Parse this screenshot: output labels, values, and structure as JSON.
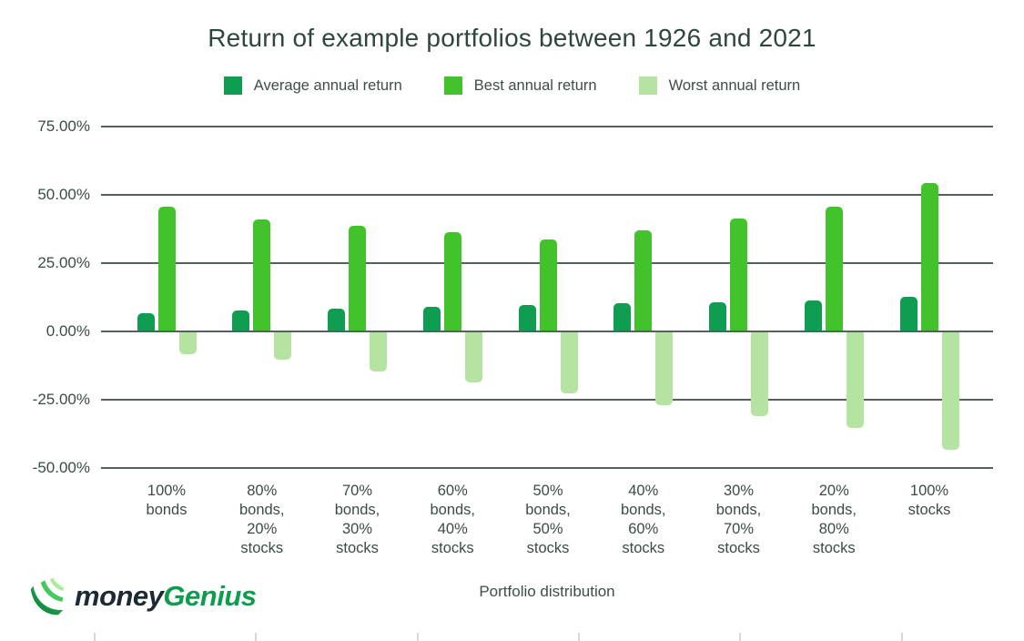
{
  "chart": {
    "title": "Return of example portfolios between 1926 and 2021",
    "x_axis_title": "Portfolio distribution"
  },
  "logo": {
    "money": "money",
    "genius": "Genius",
    "money_color": "#1b2a33",
    "genius_color": "#0d9e4d",
    "icon_colors": [
      "#0a7c3c",
      "#2eb44f",
      "#45c85c",
      "#a9ee96"
    ]
  },
  "colors": {
    "title_text": "#2e463e",
    "axis_text": "#3c4b45",
    "gridline": "#53605b",
    "footer_tick": "#d7d7d7",
    "background": "#ffffff"
  },
  "chart_data": {
    "type": "bar",
    "title": "Return of example portfolios between 1926 and 2021",
    "xlabel": "Portfolio distribution",
    "ylabel": "",
    "ylim": [
      -50,
      75
    ],
    "grid": true,
    "legend_position": "top",
    "y_ticks": [
      {
        "label": "75.00%",
        "value": 75
      },
      {
        "label": "50.00%",
        "value": 50
      },
      {
        "label": "25.00%",
        "value": 25
      },
      {
        "label": "0.00%",
        "value": 0
      },
      {
        "label": "-25.00%",
        "value": -25
      },
      {
        "label": "-50.00%",
        "value": -50
      }
    ],
    "categories": [
      "100% bonds",
      "80% bonds, 20% stocks",
      "70% bonds, 30% stocks",
      "60% bonds, 40% stocks",
      "50% bonds, 50% stocks",
      "40% bonds, 60% stocks",
      "30% bonds, 70% stocks",
      "20% bonds, 80% stocks",
      "100% stocks"
    ],
    "category_lines": [
      [
        "100%",
        "bonds"
      ],
      [
        "80%",
        "bonds,",
        "20%",
        "stocks"
      ],
      [
        "70%",
        "bonds,",
        "30%",
        "stocks"
      ],
      [
        "60%",
        "bonds,",
        "40%",
        "stocks"
      ],
      [
        "50%",
        "bonds,",
        "50%",
        "stocks"
      ],
      [
        "40%",
        "bonds,",
        "60%",
        "stocks"
      ],
      [
        "30%",
        "bonds,",
        "70%",
        "stocks"
      ],
      [
        "20%",
        "bonds,",
        "80%",
        "stocks"
      ],
      [
        "100%",
        "stocks"
      ]
    ],
    "series": [
      {
        "name": "Average annual return",
        "color": "#0f9d52",
        "values": [
          6.3,
          7.5,
          8.1,
          8.7,
          9.3,
          9.9,
          10.5,
          11.1,
          12.3
        ]
      },
      {
        "name": "Best annual return",
        "color": "#43c32b",
        "values": [
          45.5,
          40.7,
          38.3,
          35.9,
          33.5,
          36.7,
          41.1,
          45.4,
          54.2
        ]
      },
      {
        "name": "Worst annual return",
        "color": "#b5e3a2",
        "values": [
          -8.1,
          -10.1,
          -14.2,
          -18.4,
          -22.5,
          -26.6,
          -30.7,
          -34.9,
          -43.1
        ]
      }
    ]
  }
}
